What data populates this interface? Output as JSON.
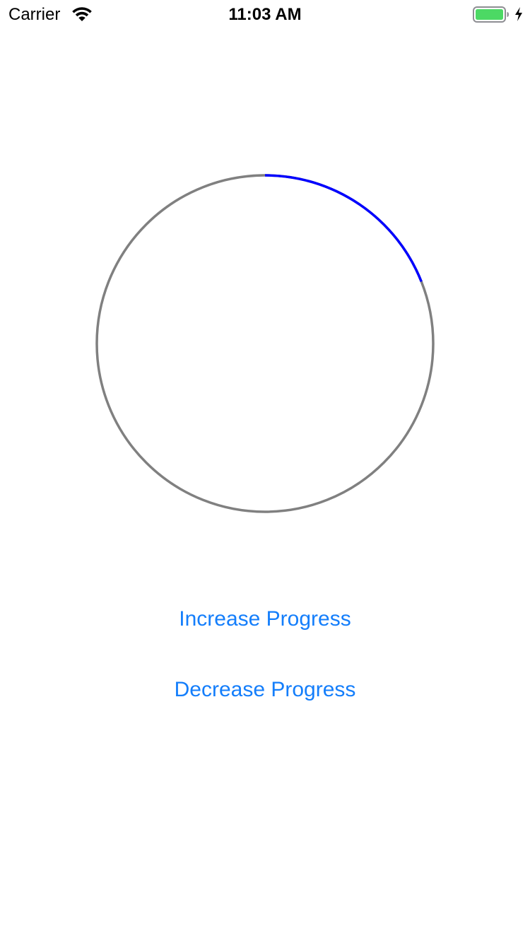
{
  "status_bar": {
    "carrier": "Carrier",
    "time": "11:03 AM",
    "wifi_icon": "wifi-icon",
    "battery_icon": "battery-full-icon",
    "charging_icon": "charging-bolt-icon",
    "battery_color": "#4CD964"
  },
  "progress_ring": {
    "progress": 0.19,
    "track_color": "#808080",
    "progress_color": "#0000FF"
  },
  "buttons": {
    "increase_label": "Increase Progress",
    "decrease_label": "Decrease Progress",
    "tint_color": "#147EFB"
  }
}
